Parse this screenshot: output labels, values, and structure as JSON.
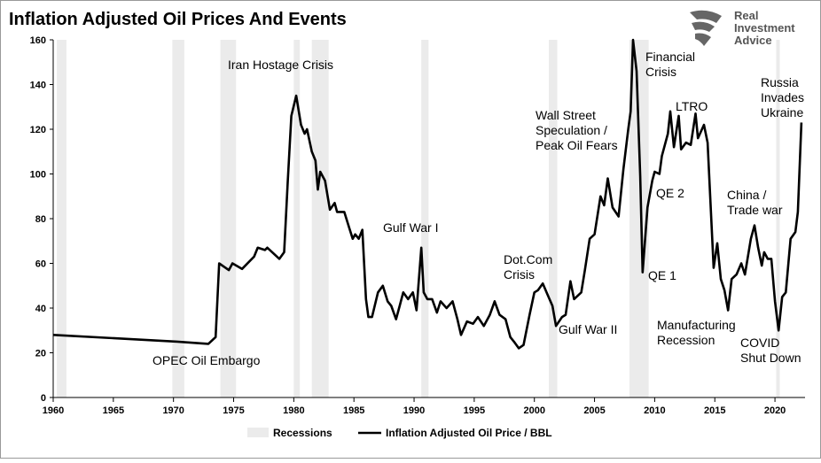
{
  "chart_data": {
    "type": "line",
    "title": "Inflation Adjusted Oil Prices And Events",
    "logo": [
      "Real",
      "Investment",
      "Advice"
    ],
    "xlim": [
      1960,
      2022.5
    ],
    "xticks": [
      1960,
      1965,
      1970,
      1975,
      1980,
      1985,
      1990,
      1995,
      2000,
      2005,
      2010,
      2015,
      2020
    ],
    "ylim": [
      0,
      160
    ],
    "yticks": [
      0,
      20,
      40,
      60,
      80,
      100,
      120,
      140,
      160
    ],
    "legend": "bottom",
    "recessions": {
      "name": "Recessions",
      "color": "#ebebeb",
      "periods": [
        [
          1960.3,
          1961.1
        ],
        [
          1969.9,
          1970.9
        ],
        [
          1973.9,
          1975.2
        ],
        [
          1980.0,
          1980.5
        ],
        [
          1981.5,
          1982.9
        ],
        [
          1990.6,
          1991.2
        ],
        [
          2001.2,
          2001.9
        ],
        [
          2007.9,
          2009.5
        ],
        [
          2020.1,
          2020.4
        ]
      ]
    },
    "series": [
      {
        "name": "Inflation Adjusted Oil Price / BBL",
        "color": "#000000",
        "x": [
          1960,
          1970.3,
          1972.9,
          1973.5,
          1973.8,
          1974.6,
          1974.9,
          1975.7,
          1976.7,
          1977,
          1977.6,
          1977.8,
          1978.8,
          1979.2,
          1979.5,
          1979.8,
          1980.2,
          1980.6,
          1980.9,
          1981.1,
          1981.5,
          1981.8,
          1982,
          1982.2,
          1982.6,
          1983,
          1983.4,
          1983.6,
          1984.2,
          1984.6,
          1984.9,
          1985.1,
          1985.4,
          1985.7,
          1986,
          1986.2,
          1986.5,
          1987,
          1987.4,
          1987.8,
          1988.1,
          1988.5,
          1988.8,
          1989.1,
          1989.5,
          1989.9,
          1990.2,
          1990.6,
          1990.8,
          1991.1,
          1991.5,
          1991.9,
          1992.2,
          1992.7,
          1993.2,
          1993.6,
          1993.9,
          1994.4,
          1994.9,
          1995.3,
          1995.8,
          1996.3,
          1996.7,
          1997.1,
          1997.6,
          1998,
          1998.3,
          1998.7,
          1999.1,
          1999.6,
          2000,
          2000.3,
          2000.7,
          2001.1,
          2001.5,
          2001.8,
          2002.3,
          2002.6,
          2003,
          2003.3,
          2003.9,
          2004.2,
          2004.6,
          2005,
          2005.5,
          2005.8,
          2006.1,
          2006.5,
          2007,
          2007.4,
          2007.8,
          2008,
          2008.2,
          2008.5,
          2008.8,
          2009,
          2009.4,
          2009.8,
          2010,
          2010.4,
          2010.6,
          2011.1,
          2011.3,
          2011.6,
          2012,
          2012.2,
          2012.6,
          2013,
          2013.4,
          2013.6,
          2014.1,
          2014.4,
          2014.9,
          2015.2,
          2015.5,
          2015.8,
          2016.1,
          2016.4,
          2016.8,
          2017.2,
          2017.5,
          2018,
          2018.3,
          2018.6,
          2018.9,
          2019.1,
          2019.4,
          2019.7,
          2020,
          2020.3,
          2020.6,
          2020.9,
          2021.3,
          2021.7,
          2021.9,
          2022.2
        ],
        "values": [
          28,
          25,
          24,
          27,
          60,
          57,
          60,
          57.5,
          63,
          67,
          66,
          67,
          62,
          65,
          97,
          126,
          135,
          122,
          118,
          120,
          110,
          106,
          93,
          101,
          97,
          84,
          87,
          83,
          83,
          76,
          71,
          73,
          71,
          75,
          44,
          36,
          36,
          47,
          50,
          43,
          41,
          35,
          41,
          47,
          44,
          47,
          39,
          67,
          47,
          44,
          44,
          38,
          43,
          40,
          43,
          35,
          28,
          34,
          33,
          36,
          32,
          37,
          43,
          37,
          35,
          27,
          25,
          22,
          23.5,
          37,
          47,
          48,
          51,
          46,
          41,
          32,
          36,
          37,
          52,
          44,
          47,
          57,
          71,
          73,
          90,
          86,
          98,
          85,
          81,
          102,
          120,
          128,
          160,
          146,
          99,
          56,
          85,
          97,
          101,
          100,
          108,
          118,
          128,
          112,
          126,
          111,
          114,
          113,
          127,
          116,
          122,
          114,
          58,
          69,
          53,
          48,
          39,
          53,
          55,
          60,
          55,
          71,
          77,
          67,
          59,
          65,
          62,
          62,
          43,
          30,
          45,
          47,
          71,
          74,
          83,
          123
        ]
      }
    ],
    "annotations": [
      [
        "Iran Hostage Crisis"
      ],
      [
        "OPEC Oil Embargo"
      ],
      [
        "Gulf War I"
      ],
      [
        "Dot.Com",
        "Crisis"
      ],
      [
        "Gulf War II"
      ],
      [
        "Wall Street",
        "Speculation /",
        "Peak Oil Fears"
      ],
      [
        "Financial",
        "Crisis"
      ],
      [
        "LTRO"
      ],
      [
        "QE 2"
      ],
      [
        "QE 1"
      ],
      [
        "Manufacturing",
        "Recession"
      ],
      [
        "China /",
        "Trade war"
      ],
      [
        "COVID",
        "Shut Down"
      ],
      [
        "Russia",
        "Invades",
        "Ukraine"
      ]
    ]
  }
}
